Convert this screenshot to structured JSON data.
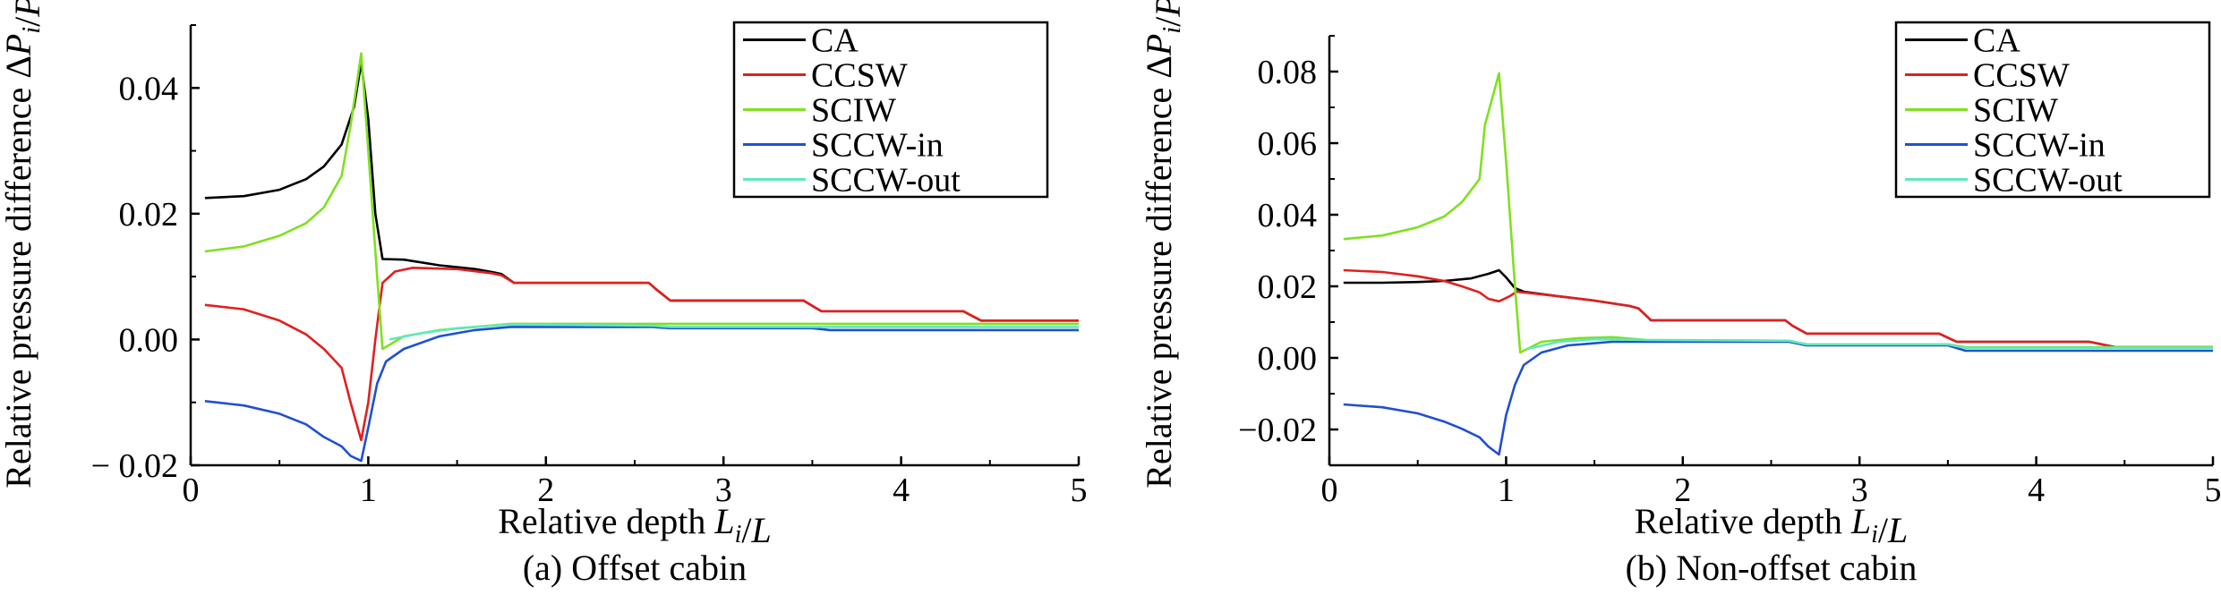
{
  "chart_data": [
    {
      "type": "line",
      "caption": "(a) Offset cabin",
      "xlabel": "Relative depth L_i/L",
      "ylabel": "Relative pressure difference ΔP_i/P",
      "xlim": [
        0,
        5
      ],
      "ylim": [
        -0.02,
        0.05
      ],
      "xticks": [
        0,
        1,
        2,
        3,
        4,
        5
      ],
      "yticks": [
        -0.02,
        0.0,
        0.02,
        0.04
      ],
      "ytick_labels": [
        "− 0.02",
        "0.00",
        "0.02",
        "0.04"
      ],
      "legend": {
        "position": "top-right"
      },
      "series": [
        {
          "name": "CA",
          "color": "#000000",
          "points": [
            [
              0.08,
              0.0225
            ],
            [
              0.3,
              0.0228
            ],
            [
              0.5,
              0.0238
            ],
            [
              0.65,
              0.0255
            ],
            [
              0.75,
              0.0275
            ],
            [
              0.85,
              0.031
            ],
            [
              0.92,
              0.037
            ],
            [
              0.96,
              0.044
            ],
            [
              1.0,
              0.035
            ],
            [
              1.04,
              0.02
            ],
            [
              1.08,
              0.0128
            ],
            [
              1.2,
              0.0127
            ],
            [
              1.4,
              0.0118
            ],
            [
              1.6,
              0.0112
            ],
            [
              1.7,
              0.0107
            ],
            [
              1.75,
              0.0104
            ],
            [
              1.82,
              0.009
            ],
            [
              2.2,
              0.009
            ],
            [
              2.58,
              0.009
            ],
            [
              2.62,
              0.008
            ],
            [
              2.7,
              0.0062
            ],
            [
              3.2,
              0.0062
            ],
            [
              3.45,
              0.0062
            ],
            [
              3.55,
              0.0045
            ],
            [
              4.0,
              0.0045
            ],
            [
              4.35,
              0.0045
            ],
            [
              4.45,
              0.003
            ],
            [
              5.0,
              0.003
            ]
          ]
        },
        {
          "name": "CCSW",
          "color": "#e02020",
          "points": [
            [
              0.08,
              0.0055
            ],
            [
              0.3,
              0.0048
            ],
            [
              0.5,
              0.003
            ],
            [
              0.65,
              0.0008
            ],
            [
              0.75,
              -0.0015
            ],
            [
              0.85,
              -0.0045
            ],
            [
              0.9,
              -0.01
            ],
            [
              0.96,
              -0.016
            ],
            [
              1.0,
              -0.01
            ],
            [
              1.04,
              0.0
            ],
            [
              1.08,
              0.009
            ],
            [
              1.15,
              0.0108
            ],
            [
              1.25,
              0.0114
            ],
            [
              1.5,
              0.0112
            ],
            [
              1.7,
              0.0105
            ],
            [
              1.75,
              0.0102
            ],
            [
              1.82,
              0.009
            ],
            [
              2.58,
              0.009
            ],
            [
              2.62,
              0.008
            ],
            [
              2.7,
              0.0062
            ],
            [
              3.45,
              0.0062
            ],
            [
              3.55,
              0.0045
            ],
            [
              4.35,
              0.0045
            ],
            [
              4.45,
              0.003
            ],
            [
              5.0,
              0.003
            ]
          ]
        },
        {
          "name": "SCIW",
          "color": "#80e020",
          "points": [
            [
              0.08,
              0.014
            ],
            [
              0.3,
              0.0148
            ],
            [
              0.5,
              0.0165
            ],
            [
              0.65,
              0.0185
            ],
            [
              0.75,
              0.021
            ],
            [
              0.85,
              0.026
            ],
            [
              0.9,
              0.034
            ],
            [
              0.96,
              0.0455
            ],
            [
              1.0,
              0.03
            ],
            [
              1.05,
              0.01
            ],
            [
              1.08,
              -0.0015
            ],
            [
              1.2,
              0.0005
            ],
            [
              1.4,
              0.0015
            ],
            [
              1.6,
              0.002
            ],
            [
              1.8,
              0.0025
            ],
            [
              5.0,
              0.0025
            ]
          ]
        },
        {
          "name": "SCCW-in",
          "color": "#2050d0",
          "points": [
            [
              0.08,
              -0.0098
            ],
            [
              0.3,
              -0.0105
            ],
            [
              0.5,
              -0.0118
            ],
            [
              0.65,
              -0.0135
            ],
            [
              0.75,
              -0.0155
            ],
            [
              0.85,
              -0.017
            ],
            [
              0.9,
              -0.0185
            ],
            [
              0.96,
              -0.0193
            ],
            [
              1.0,
              -0.014
            ],
            [
              1.05,
              -0.007
            ],
            [
              1.1,
              -0.0035
            ],
            [
              1.2,
              -0.0015
            ],
            [
              1.4,
              0.0005
            ],
            [
              1.6,
              0.0015
            ],
            [
              1.8,
              0.002
            ],
            [
              2.6,
              0.002
            ],
            [
              2.7,
              0.0018
            ],
            [
              3.5,
              0.0018
            ],
            [
              3.6,
              0.0015
            ],
            [
              5.0,
              0.0015
            ]
          ]
        },
        {
          "name": "SCCW-out",
          "color": "#60e8c0",
          "points": [
            [
              1.12,
              0.0
            ],
            [
              1.3,
              0.001
            ],
            [
              1.5,
              0.0018
            ],
            [
              1.7,
              0.0022
            ],
            [
              1.8,
              0.0024
            ],
            [
              2.6,
              0.0022
            ],
            [
              2.7,
              0.002
            ],
            [
              5.0,
              0.002
            ]
          ]
        }
      ]
    },
    {
      "type": "line",
      "caption": "(b) Non-offset cabin",
      "xlabel": "Relative depth L_i/L",
      "ylabel": "Relative pressure difference ΔP_i/P",
      "xlim": [
        0,
        5
      ],
      "ylim": [
        -0.03,
        0.09
      ],
      "xticks": [
        0,
        1,
        2,
        3,
        4,
        5
      ],
      "yticks": [
        -0.02,
        0.0,
        0.02,
        0.04,
        0.06,
        0.08
      ],
      "ytick_labels": [
        "−0.02",
        "0.00",
        "0.02",
        "0.04",
        "0.06",
        "0.08"
      ],
      "legend": {
        "position": "top-right"
      },
      "series": [
        {
          "name": "CA",
          "color": "#000000",
          "points": [
            [
              0.08,
              0.021
            ],
            [
              0.3,
              0.021
            ],
            [
              0.5,
              0.0212
            ],
            [
              0.65,
              0.0215
            ],
            [
              0.8,
              0.0222
            ],
            [
              0.9,
              0.0235
            ],
            [
              0.96,
              0.0245
            ],
            [
              1.0,
              0.0225
            ],
            [
              1.05,
              0.0195
            ],
            [
              1.1,
              0.0185
            ],
            [
              1.3,
              0.0172
            ],
            [
              1.5,
              0.016
            ],
            [
              1.7,
              0.0145
            ],
            [
              1.75,
              0.0138
            ],
            [
              1.82,
              0.0105
            ],
            [
              2.58,
              0.0105
            ],
            [
              2.62,
              0.009
            ],
            [
              2.7,
              0.0068
            ],
            [
              3.45,
              0.0068
            ],
            [
              3.55,
              0.0045
            ],
            [
              4.3,
              0.0045
            ],
            [
              4.45,
              0.003
            ],
            [
              5.0,
              0.003
            ]
          ]
        },
        {
          "name": "CCSW",
          "color": "#e02020",
          "points": [
            [
              0.08,
              0.0245
            ],
            [
              0.3,
              0.024
            ],
            [
              0.5,
              0.0228
            ],
            [
              0.65,
              0.0215
            ],
            [
              0.75,
              0.02
            ],
            [
              0.85,
              0.0183
            ],
            [
              0.9,
              0.0165
            ],
            [
              0.96,
              0.0158
            ],
            [
              1.02,
              0.0172
            ],
            [
              1.06,
              0.0185
            ],
            [
              1.1,
              0.0183
            ],
            [
              1.3,
              0.0172
            ],
            [
              1.5,
              0.016
            ],
            [
              1.7,
              0.0145
            ],
            [
              1.75,
              0.0138
            ],
            [
              1.82,
              0.0105
            ],
            [
              2.58,
              0.0105
            ],
            [
              2.62,
              0.009
            ],
            [
              2.7,
              0.0068
            ],
            [
              3.45,
              0.0068
            ],
            [
              3.55,
              0.0045
            ],
            [
              4.3,
              0.0045
            ],
            [
              4.45,
              0.003
            ],
            [
              5.0,
              0.003
            ]
          ]
        },
        {
          "name": "SCIW",
          "color": "#80e020",
          "points": [
            [
              0.08,
              0.0332
            ],
            [
              0.3,
              0.0342
            ],
            [
              0.5,
              0.0365
            ],
            [
              0.65,
              0.0395
            ],
            [
              0.75,
              0.0435
            ],
            [
              0.85,
              0.05
            ],
            [
              0.88,
              0.065
            ],
            [
              0.96,
              0.0795
            ],
            [
              1.0,
              0.055
            ],
            [
              1.05,
              0.02
            ],
            [
              1.08,
              0.0015
            ],
            [
              1.2,
              0.0045
            ],
            [
              1.4,
              0.0055
            ],
            [
              1.6,
              0.0058
            ],
            [
              1.8,
              0.005
            ],
            [
              2.6,
              0.0048
            ],
            [
              2.7,
              0.0038
            ],
            [
              3.5,
              0.0038
            ],
            [
              3.6,
              0.003
            ],
            [
              5.0,
              0.003
            ]
          ]
        },
        {
          "name": "SCCW-in",
          "color": "#2050d0",
          "points": [
            [
              0.08,
              -0.013
            ],
            [
              0.3,
              -0.0138
            ],
            [
              0.5,
              -0.0155
            ],
            [
              0.65,
              -0.0178
            ],
            [
              0.75,
              -0.0198
            ],
            [
              0.85,
              -0.0222
            ],
            [
              0.9,
              -0.0248
            ],
            [
              0.96,
              -0.027
            ],
            [
              1.0,
              -0.016
            ],
            [
              1.05,
              -0.0075
            ],
            [
              1.1,
              -0.002
            ],
            [
              1.2,
              0.0015
            ],
            [
              1.35,
              0.0035
            ],
            [
              1.6,
              0.0045
            ],
            [
              1.8,
              0.0045
            ],
            [
              2.6,
              0.0045
            ],
            [
              2.7,
              0.0035
            ],
            [
              3.5,
              0.0035
            ],
            [
              3.6,
              0.002
            ],
            [
              5.0,
              0.002
            ]
          ]
        },
        {
          "name": "SCCW-out",
          "color": "#60e8c0",
          "points": [
            [
              1.12,
              0.0025
            ],
            [
              1.3,
              0.0045
            ],
            [
              1.5,
              0.0052
            ],
            [
              1.8,
              0.005
            ],
            [
              2.6,
              0.0048
            ],
            [
              2.7,
              0.0038
            ],
            [
              3.5,
              0.0038
            ],
            [
              3.6,
              0.0028
            ],
            [
              5.0,
              0.0028
            ]
          ]
        }
      ]
    }
  ]
}
